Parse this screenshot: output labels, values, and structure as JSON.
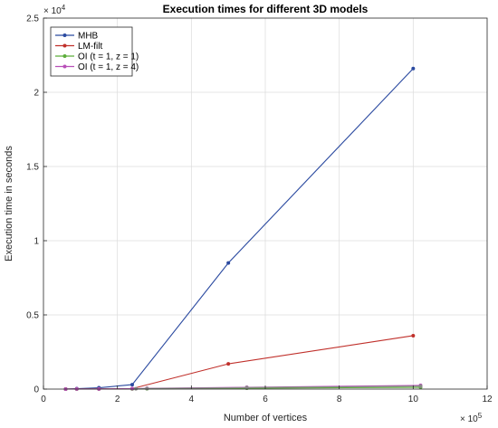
{
  "chart_data": {
    "type": "line",
    "title": "Execution times for different 3D models",
    "xlabel": "Number of vertices",
    "ylabel": "Execution time in seconds",
    "x_exponent": "× 10^5",
    "y_exponent": "× 10^4",
    "x_exponent_base": "× 10",
    "x_exponent_power": "5",
    "y_exponent_base": "× 10",
    "y_exponent_power": "4",
    "xlim": [
      0,
      12
    ],
    "ylim": [
      0,
      2.5
    ],
    "xticks": [
      "0",
      "2",
      "4",
      "6",
      "8",
      "10",
      "12"
    ],
    "yticks": [
      "0",
      "0.5",
      "1",
      "1.5",
      "2",
      "2.5"
    ],
    "grid": true,
    "legend_position": "top-left",
    "series": [
      {
        "name": "MHB",
        "color": "#2b4aa0",
        "x": [
          0.6,
          0.9,
          1.5,
          2.4,
          5.0,
          10.0
        ],
        "y": [
          0.0003,
          0.003,
          0.009,
          0.03,
          0.85,
          2.16
        ]
      },
      {
        "name": "LM-filt",
        "color": "#c0302b",
        "x": [
          0.6,
          0.9,
          1.5,
          2.4,
          5.0,
          10.0
        ],
        "y": [
          0.0001,
          0.0005,
          0.001,
          0.003,
          0.17,
          0.36
        ]
      },
      {
        "name": "OI (t = 1, z = 1)",
        "color": "#5cad3a",
        "x": [
          0.6,
          0.9,
          1.5,
          2.4,
          2.8,
          5.5,
          10.2
        ],
        "y": [
          0.0,
          0.0,
          0.0005,
          0.001,
          0.002,
          0.006,
          0.012
        ]
      },
      {
        "name": "OI (t = 1, z = 4)",
        "color": "#b84fb8",
        "x": [
          0.6,
          0.9,
          1.5,
          2.4,
          2.8,
          5.5,
          10.2
        ],
        "y": [
          0.0,
          0.0005,
          0.001,
          0.003,
          0.005,
          0.012,
          0.025
        ]
      },
      {
        "name": "",
        "color": "#888888",
        "x": [
          2.5,
          2.8,
          5.5,
          10.2
        ],
        "y": [
          0.002,
          0.004,
          0.01,
          0.02
        ]
      }
    ]
  }
}
